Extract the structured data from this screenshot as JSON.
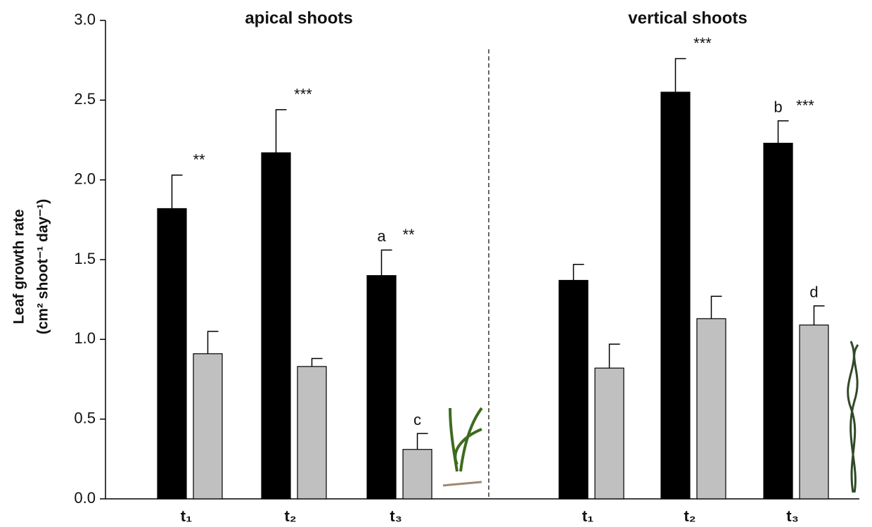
{
  "chart_data": {
    "type": "bar",
    "ylabel": [
      "Leaf growth rate",
      "(cm² shoot⁻¹ day⁻¹)"
    ],
    "ylim": [
      0,
      3.0
    ],
    "yticks": [
      {
        "value": 0,
        "label": "0.0"
      },
      {
        "value": 0.5,
        "label": "0.5"
      },
      {
        "value": 1,
        "label": "1.0"
      },
      {
        "value": 1.5,
        "label": "1.5"
      },
      {
        "value": 2,
        "label": "2.0"
      },
      {
        "value": 2.5,
        "label": "2.5"
      },
      {
        "value": 3,
        "label": "3.0"
      }
    ],
    "panels": [
      {
        "title": "apical shoots",
        "categories": [
          "t₁",
          "t₂",
          "t₃"
        ],
        "series": [
          {
            "color": "#000000",
            "values": [
              1.82,
              2.17,
              1.4
            ],
            "errors": [
              0.21,
              0.27,
              0.16
            ],
            "letters": [
              null,
              null,
              "a"
            ],
            "stars": [
              "**",
              "***",
              "**"
            ]
          },
          {
            "color": "#c0c0c0",
            "values": [
              0.91,
              0.83,
              0.31
            ],
            "errors": [
              0.14,
              0.05,
              0.1
            ],
            "letters": [
              null,
              null,
              "c"
            ],
            "stars": [
              null,
              null,
              null
            ]
          }
        ]
      },
      {
        "title": "vertical shoots",
        "categories": [
          "t₁",
          "t₂",
          "t₃"
        ],
        "series": [
          {
            "color": "#000000",
            "values": [
              1.37,
              2.55,
              2.23
            ],
            "errors": [
              0.1,
              0.21,
              0.14
            ],
            "letters": [
              null,
              null,
              "b"
            ],
            "stars": [
              null,
              "***",
              "***"
            ]
          },
          {
            "color": "#c0c0c0",
            "values": [
              0.82,
              1.13,
              1.09
            ],
            "errors": [
              0.15,
              0.14,
              0.12
            ],
            "letters": [
              null,
              null,
              "d"
            ],
            "stars": [
              null,
              null,
              null
            ]
          }
        ]
      }
    ]
  }
}
